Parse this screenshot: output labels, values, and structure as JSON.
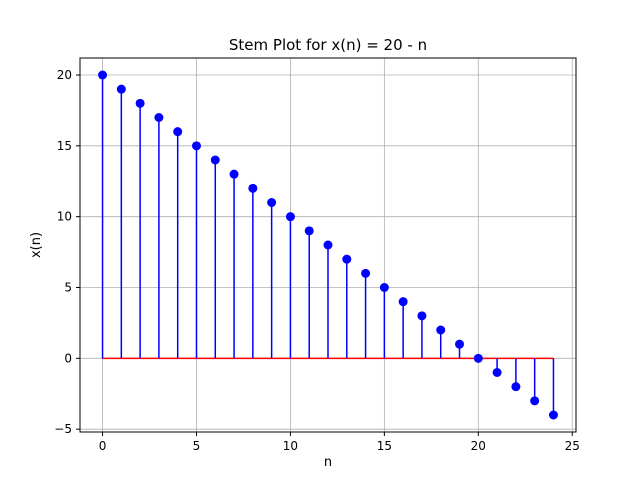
{
  "chart_data": {
    "type": "stem",
    "title": "Stem Plot for x(n) = 20 - n",
    "xlabel": "n",
    "ylabel": "x(n)",
    "xlim": [
      -1.2,
      25.2
    ],
    "ylim": [
      -5.2,
      21.2
    ],
    "xticks": [
      0,
      5,
      10,
      15,
      20,
      25
    ],
    "yticks": [
      -5,
      0,
      5,
      10,
      15,
      20
    ],
    "grid": true,
    "x": [
      0,
      1,
      2,
      3,
      4,
      5,
      6,
      7,
      8,
      9,
      10,
      11,
      12,
      13,
      14,
      15,
      16,
      17,
      18,
      19,
      20,
      21,
      22,
      23,
      24
    ],
    "values": [
      20,
      19,
      18,
      17,
      16,
      15,
      14,
      13,
      12,
      11,
      10,
      9,
      8,
      7,
      6,
      5,
      4,
      3,
      2,
      1,
      0,
      -1,
      -2,
      -3,
      -4
    ],
    "baseline": 0,
    "colors": {
      "stem": "#0000ff",
      "marker": "#0000ff",
      "baseline": "#ff0000",
      "grid": "#b0b0b0",
      "axes": "#000000"
    }
  }
}
